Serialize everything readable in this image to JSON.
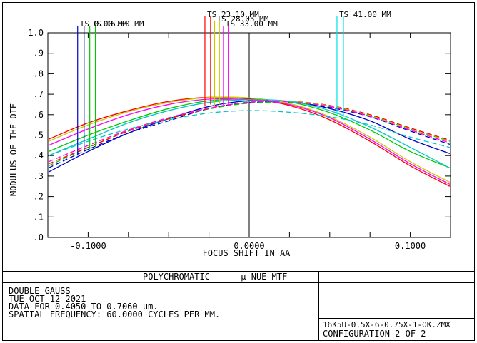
{
  "chart_data": {
    "type": "line",
    "xlabel": "FOCUS SHIFT IN  AA",
    "ylabel": "MODULUS OF THE OTF",
    "xlim": [
      -0.125,
      0.125
    ],
    "ylim": [
      0,
      1.0
    ],
    "x_ticks": [
      "-0.1000",
      "0.0000",
      "0.1000"
    ],
    "y_ticks": [
      "1.0",
      ".9",
      ".8",
      ".7",
      ".6",
      ".5",
      ".4",
      ".3",
      ".2",
      ".1",
      ".0"
    ],
    "field_labels": [
      "TS 0.00 MM",
      "TS 16.50 MM",
      "TS 23.10 MM",
      "TS 28.05 MM",
      "TS 33.00 MM",
      "TS 41.00 MM"
    ],
    "x": [
      -0.1245,
      -0.1,
      -0.075,
      -0.05,
      -0.025,
      0.0,
      0.025,
      0.05,
      0.075,
      0.1,
      0.1245
    ],
    "series": [
      {
        "color": "#0000c8",
        "dash": false,
        "values": [
          0.32,
          0.42,
          0.51,
          0.58,
          0.64,
          0.668,
          0.665,
          0.63,
          0.57,
          0.48,
          0.41
        ]
      },
      {
        "color": "#0000c8",
        "dash": true,
        "values": [
          0.34,
          0.43,
          0.51,
          0.57,
          0.63,
          0.659,
          0.66,
          0.635,
          0.59,
          0.52,
          0.455
        ]
      },
      {
        "color": "#00c800",
        "dash": false,
        "values": [
          0.42,
          0.5,
          0.57,
          0.63,
          0.668,
          0.676,
          0.662,
          0.61,
          0.525,
          0.42,
          0.34
        ]
      },
      {
        "color": "#00c800",
        "dash": true,
        "values": [
          0.35,
          0.44,
          0.52,
          0.58,
          0.628,
          0.656,
          0.66,
          0.64,
          0.595,
          0.53,
          0.47
        ]
      },
      {
        "color": "#ff0000",
        "dash": false,
        "values": [
          0.48,
          0.56,
          0.62,
          0.665,
          0.685,
          0.678,
          0.645,
          0.575,
          0.47,
          0.35,
          0.25
        ]
      },
      {
        "color": "#ff0000",
        "dash": true,
        "values": [
          0.36,
          0.44,
          0.52,
          0.58,
          0.63,
          0.662,
          0.666,
          0.645,
          0.6,
          0.535,
          0.475
        ]
      },
      {
        "color": "#c8c800",
        "dash": false,
        "values": [
          0.47,
          0.55,
          0.615,
          0.66,
          0.684,
          0.682,
          0.655,
          0.59,
          0.49,
          0.37,
          0.27
        ]
      },
      {
        "color": "#c8c800",
        "dash": true,
        "values": [
          0.37,
          0.45,
          0.525,
          0.585,
          0.632,
          0.661,
          0.665,
          0.643,
          0.596,
          0.53,
          0.468
        ]
      },
      {
        "color": "#ff00ff",
        "dash": false,
        "values": [
          0.45,
          0.53,
          0.6,
          0.65,
          0.676,
          0.673,
          0.65,
          0.585,
          0.48,
          0.36,
          0.26
        ]
      },
      {
        "color": "#ff00ff",
        "dash": true,
        "values": [
          0.37,
          0.45,
          0.525,
          0.585,
          0.632,
          0.661,
          0.663,
          0.64,
          0.592,
          0.525,
          0.462
        ]
      },
      {
        "color": "#00c8c8",
        "dash": false,
        "values": [
          0.4,
          0.48,
          0.56,
          0.62,
          0.66,
          0.673,
          0.665,
          0.62,
          0.54,
          0.44,
          0.34
        ]
      },
      {
        "color": "#00c8c8",
        "dash": true,
        "values": [
          0.4,
          0.47,
          0.53,
          0.575,
          0.608,
          0.62,
          0.612,
          0.59,
          0.55,
          0.49,
          0.44
        ]
      }
    ],
    "markers": [
      {
        "x": -0.1065,
        "top": 1.035,
        "bottom": 0.4,
        "color": "#0000c8",
        "label_index": 0
      },
      {
        "x": -0.1025,
        "top": 1.035,
        "bottom": 0.42,
        "color": "#0000c8"
      },
      {
        "x": -0.099,
        "top": 1.035,
        "bottom": 0.43,
        "color": "#00c800",
        "label_index": 1
      },
      {
        "x": -0.0955,
        "top": 1.035,
        "bottom": 0.44,
        "color": "#00c800"
      },
      {
        "x": -0.0275,
        "top": 1.08,
        "bottom": 0.64,
        "color": "#ff0000",
        "label_index": 2
      },
      {
        "x": -0.024,
        "top": 1.08,
        "bottom": 0.65,
        "color": "#ff0000"
      },
      {
        "x": -0.0215,
        "top": 1.06,
        "bottom": 0.64,
        "color": "#c8c800",
        "label_index": 3
      },
      {
        "x": -0.0185,
        "top": 1.06,
        "bottom": 0.65,
        "color": "#c8c800"
      },
      {
        "x": -0.016,
        "top": 1.035,
        "bottom": 0.64,
        "color": "#ff00ff",
        "label_index": 4
      },
      {
        "x": -0.013,
        "top": 1.035,
        "bottom": 0.65,
        "color": "#ff00ff"
      },
      {
        "x": 0.0545,
        "top": 1.08,
        "bottom": 0.6,
        "color": "#00e0e0",
        "label_index": 5
      },
      {
        "x": 0.0585,
        "top": 1.08,
        "bottom": 0.59,
        "color": "#00e0e0"
      }
    ]
  },
  "footer": {
    "title": "POLYCHROMATIC      μ ÑUÉ MTF",
    "lines": [
      "DOUBLE GAUSS",
      "TUE OCT 12 2021",
      "DATA FOR 0.4050 TO 0.7060 μm.",
      "SPATIAL FREQUENCY: 60.0000 CYCLES PER MM."
    ],
    "file": "16K5U-0.5X-6-0.75X-1-OK.ZMX",
    "configuration": "CONFIGURATION 2 OF 2"
  }
}
